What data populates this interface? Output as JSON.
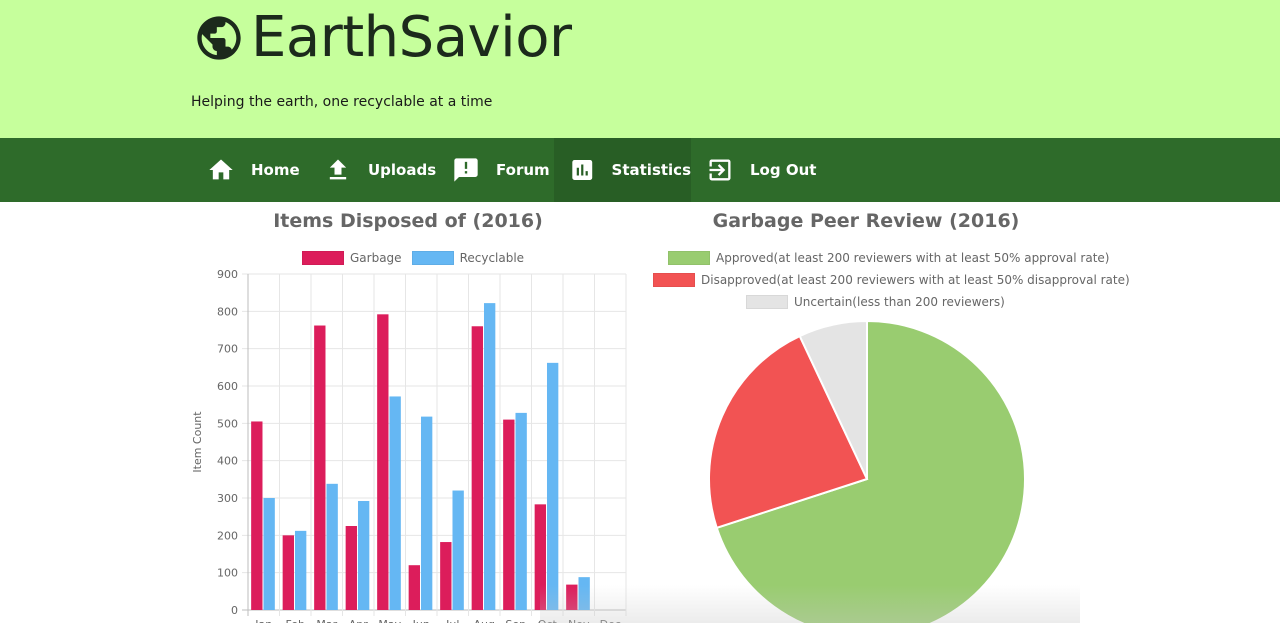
{
  "header": {
    "brand": "EarthSavior",
    "tagline": "Helping the earth, one recyclable at a time",
    "background": "#c6ff9c"
  },
  "nav": {
    "background": "#2e6b2a",
    "items": [
      {
        "label": "Home",
        "icon": "home-icon"
      },
      {
        "label": "Uploads",
        "icon": "upload-icon"
      },
      {
        "label": "Forum",
        "icon": "forum-icon"
      },
      {
        "label": "Statistics",
        "icon": "bar-chart-icon",
        "active": true
      },
      {
        "label": "Log Out",
        "icon": "logout-icon"
      }
    ]
  },
  "chart_data": [
    {
      "type": "bar",
      "title": "Items Disposed of (2016)",
      "ylabel": "Item Count",
      "xlabel": "",
      "ylim": [
        0,
        900
      ],
      "yticks": [
        0,
        100,
        200,
        300,
        400,
        500,
        600,
        700,
        800,
        900
      ],
      "grid": true,
      "legend": "top",
      "categories": [
        "Jan",
        "Feb",
        "Mar",
        "Apr",
        "May",
        "Jun",
        "Jul",
        "Aug",
        "Sep",
        "Oct",
        "Nov",
        "Dec"
      ],
      "series": [
        {
          "name": "Garbage",
          "color": "#dc1d5b",
          "values": [
            505,
            200,
            762,
            225,
            792,
            120,
            182,
            760,
            510,
            283,
            68,
            0
          ]
        },
        {
          "name": "Recyclable",
          "color": "#65b7f3",
          "values": [
            300,
            212,
            338,
            292,
            572,
            518,
            320,
            822,
            528,
            662,
            88,
            0
          ]
        }
      ]
    },
    {
      "type": "pie",
      "title": "Garbage Peer Review (2016)",
      "legend": "top",
      "slices": [
        {
          "label": "Approved(at least 200 reviewers with at least 50% approval rate)",
          "value": 70,
          "color": "#99cc70"
        },
        {
          "label": "Disapproved(at least 200 reviewers with at least 50% disapproval rate)",
          "value": 23,
          "color": "#f25353"
        },
        {
          "label": "Uncertain(less than 200 reviewers)",
          "value": 7,
          "color": "#e4e4e4"
        }
      ]
    }
  ]
}
